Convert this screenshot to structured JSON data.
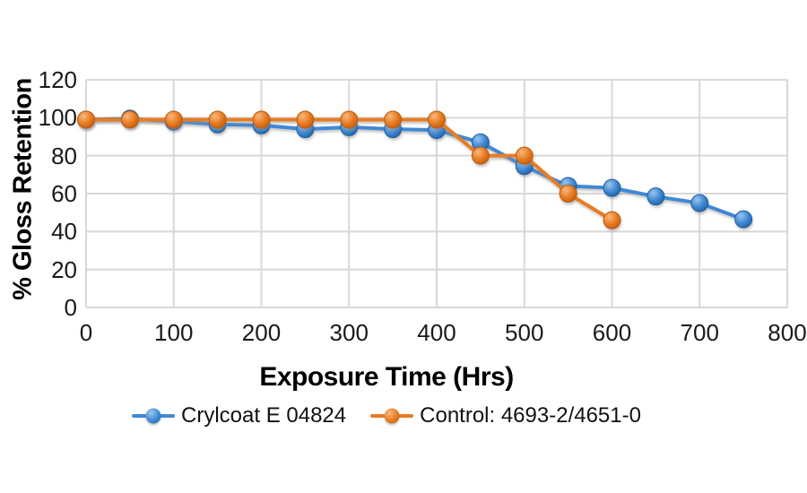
{
  "figure": {
    "background": "#FFFFFF",
    "grid_color": "#D8D8D8",
    "tick_color": "#1A1A1A"
  },
  "chart_data": {
    "type": "line",
    "title": "",
    "xlabel": "Exposure Time (Hrs)",
    "ylabel": "% Gloss Retention",
    "xlim": [
      0,
      800
    ],
    "ylim": [
      0,
      120
    ],
    "xticks": [
      0,
      100,
      200,
      300,
      400,
      500,
      600,
      700,
      800
    ],
    "yticks": [
      0,
      20,
      40,
      60,
      80,
      100,
      120
    ],
    "grid": true,
    "legend_position": "bottom",
    "x": [
      0,
      50,
      100,
      150,
      200,
      250,
      300,
      350,
      400,
      450,
      500,
      550,
      600,
      650,
      700,
      750
    ],
    "series": [
      {
        "name": "Crylcoat E 04824",
        "color": "#3F88D4",
        "marker_highlight": "#9CC4EC",
        "marker_dark": "#1E5F9E",
        "values": [
          99,
          99.5,
          98,
          96.5,
          96,
          94,
          95,
          94,
          93.5,
          87,
          74.5,
          64,
          63,
          58.5,
          55,
          46.5
        ]
      },
      {
        "name": "Control: 4693-2/4651-0",
        "color": "#E87B22",
        "marker_highlight": "#F6B87E",
        "marker_dark": "#BC5A0E",
        "values": [
          99,
          99,
          99,
          99,
          99,
          99,
          99,
          99,
          99,
          80,
          80,
          60,
          46
        ]
      }
    ]
  }
}
